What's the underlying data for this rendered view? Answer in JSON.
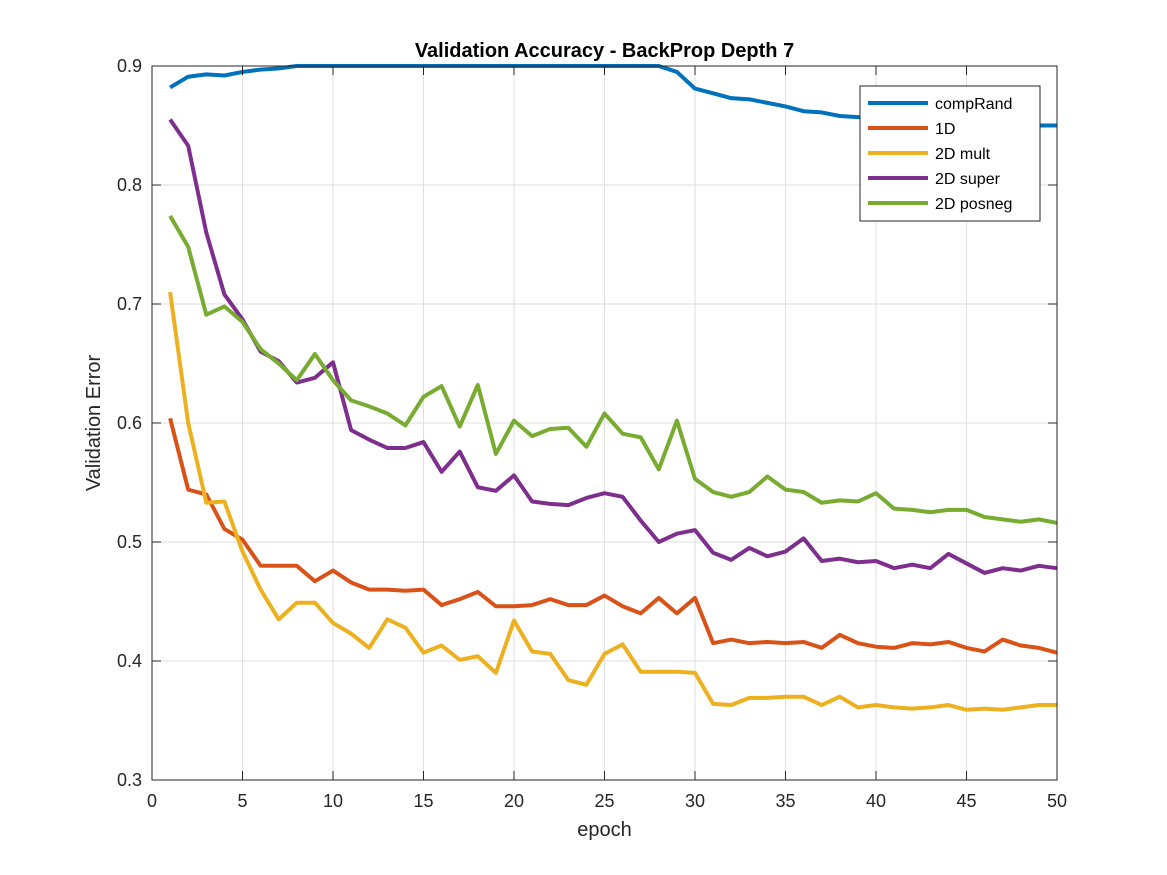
{
  "chart_data": {
    "type": "line",
    "title": "Validation Accuracy - BackProp Depth 7",
    "xlabel": "epoch",
    "ylabel": "Validation Error",
    "xlim": [
      0,
      50
    ],
    "ylim": [
      0.3,
      0.9
    ],
    "xticks": [
      0,
      5,
      10,
      15,
      20,
      25,
      30,
      35,
      40,
      45,
      50
    ],
    "yticks": [
      0.3,
      0.4,
      0.5,
      0.6,
      0.7,
      0.8,
      0.9
    ],
    "xtick_labels": [
      "0",
      "5",
      "10",
      "15",
      "20",
      "25",
      "30",
      "35",
      "40",
      "45",
      "50"
    ],
    "ytick_labels": [
      "0.3",
      "0.4",
      "0.5",
      "0.6",
      "0.7",
      "0.8",
      "0.9"
    ],
    "grid": true,
    "legend_position": "top-right",
    "x": [
      1,
      2,
      3,
      4,
      5,
      6,
      7,
      8,
      9,
      10,
      11,
      12,
      13,
      14,
      15,
      16,
      17,
      18,
      19,
      20,
      21,
      22,
      23,
      24,
      25,
      26,
      27,
      28,
      29,
      30,
      31,
      32,
      33,
      34,
      35,
      36,
      37,
      38,
      39,
      40,
      41,
      42,
      43,
      44,
      45,
      46,
      47,
      48,
      49,
      50
    ],
    "series": [
      {
        "name": "compRand",
        "color": "#0072BD",
        "values": [
          0.882,
          0.891,
          0.893,
          0.892,
          0.895,
          0.897,
          0.898,
          0.9,
          0.9,
          0.9,
          0.9,
          0.9,
          0.9,
          0.9,
          0.9,
          0.9,
          0.9,
          0.9,
          0.9,
          0.9,
          0.9,
          0.9,
          0.9,
          0.9,
          0.9,
          0.9,
          0.9,
          0.9,
          0.895,
          0.881,
          0.877,
          0.873,
          0.872,
          0.869,
          0.866,
          0.862,
          0.861,
          0.858,
          0.857,
          0.856,
          0.855,
          0.854,
          0.853,
          0.853,
          0.852,
          0.852,
          0.851,
          0.851,
          0.85,
          0.85
        ]
      },
      {
        "name": "1D",
        "color": "#D95319",
        "values": [
          0.604,
          0.544,
          0.54,
          0.511,
          0.502,
          0.48,
          0.48,
          0.48,
          0.467,
          0.476,
          0.466,
          0.46,
          0.46,
          0.459,
          0.46,
          0.447,
          0.452,
          0.458,
          0.446,
          0.446,
          0.447,
          0.452,
          0.447,
          0.447,
          0.455,
          0.446,
          0.44,
          0.453,
          0.44,
          0.453,
          0.415,
          0.418,
          0.415,
          0.416,
          0.415,
          0.416,
          0.411,
          0.422,
          0.415,
          0.412,
          0.411,
          0.415,
          0.414,
          0.416,
          0.411,
          0.408,
          0.418,
          0.413,
          0.411,
          0.407
        ]
      },
      {
        "name": "2D mult",
        "color": "#EDB120",
        "values": [
          0.71,
          0.6,
          0.533,
          0.534,
          0.492,
          0.46,
          0.435,
          0.449,
          0.449,
          0.432,
          0.423,
          0.411,
          0.435,
          0.428,
          0.407,
          0.413,
          0.401,
          0.404,
          0.39,
          0.434,
          0.408,
          0.406,
          0.384,
          0.38,
          0.406,
          0.414,
          0.391,
          0.391,
          0.391,
          0.39,
          0.364,
          0.363,
          0.369,
          0.369,
          0.37,
          0.37,
          0.363,
          0.37,
          0.361,
          0.363,
          0.361,
          0.36,
          0.361,
          0.363,
          0.359,
          0.36,
          0.359,
          0.361,
          0.363,
          0.363
        ]
      },
      {
        "name": "2D super",
        "color": "#7E2F8E",
        "values": [
          0.855,
          0.833,
          0.76,
          0.708,
          0.687,
          0.66,
          0.652,
          0.634,
          0.638,
          0.651,
          0.594,
          0.586,
          0.579,
          0.579,
          0.584,
          0.559,
          0.576,
          0.546,
          0.543,
          0.556,
          0.534,
          0.532,
          0.531,
          0.537,
          0.541,
          0.538,
          0.518,
          0.5,
          0.507,
          0.51,
          0.491,
          0.485,
          0.495,
          0.488,
          0.492,
          0.503,
          0.484,
          0.486,
          0.483,
          0.484,
          0.478,
          0.481,
          0.478,
          0.49,
          0.482,
          0.474,
          0.478,
          0.476,
          0.48,
          0.478
        ]
      },
      {
        "name": "2D posneg",
        "color": "#77AC30",
        "values": [
          0.774,
          0.748,
          0.691,
          0.698,
          0.685,
          0.662,
          0.65,
          0.636,
          0.658,
          0.636,
          0.619,
          0.614,
          0.608,
          0.598,
          0.622,
          0.631,
          0.597,
          0.632,
          0.574,
          0.602,
          0.589,
          0.595,
          0.596,
          0.58,
          0.608,
          0.591,
          0.588,
          0.561,
          0.602,
          0.553,
          0.542,
          0.538,
          0.542,
          0.555,
          0.544,
          0.542,
          0.533,
          0.535,
          0.534,
          0.541,
          0.528,
          0.527,
          0.525,
          0.527,
          0.527,
          0.521,
          0.519,
          0.517,
          0.519,
          0.516
        ]
      }
    ]
  }
}
